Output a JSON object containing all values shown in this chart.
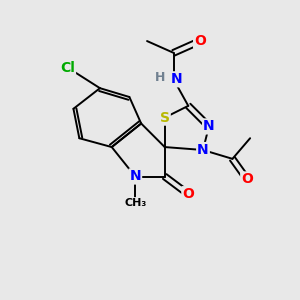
{
  "bg_color": "#e8e8e8",
  "atom_colors": {
    "C": "#000000",
    "N": "#0000ff",
    "O": "#ff0000",
    "S": "#b8b800",
    "Cl": "#00aa00",
    "H": "#708090"
  },
  "bond_color": "#000000",
  "figsize": [
    3.0,
    3.0
  ],
  "dpi": 100
}
